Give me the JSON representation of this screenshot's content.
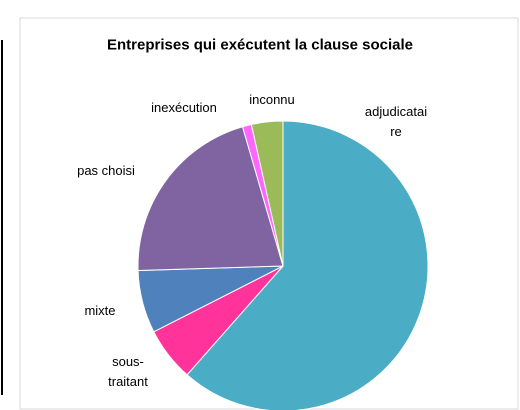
{
  "chart_data": {
    "type": "pie",
    "title": "Entreprises qui exécutent la clause sociale",
    "categories": [
      "adjudicataire",
      "sous-traitant",
      "mixte",
      "pas choisi",
      "inexécution",
      "inconnu"
    ],
    "values": [
      61.5,
      6,
      7,
      21,
      1,
      3.5
    ],
    "colors": [
      "#4bacc6",
      "#ff3399",
      "#4f81bd",
      "#8064a2",
      "#ff66ff",
      "#9bbb59"
    ],
    "start_angle": 0,
    "direction": "clockwise"
  }
}
